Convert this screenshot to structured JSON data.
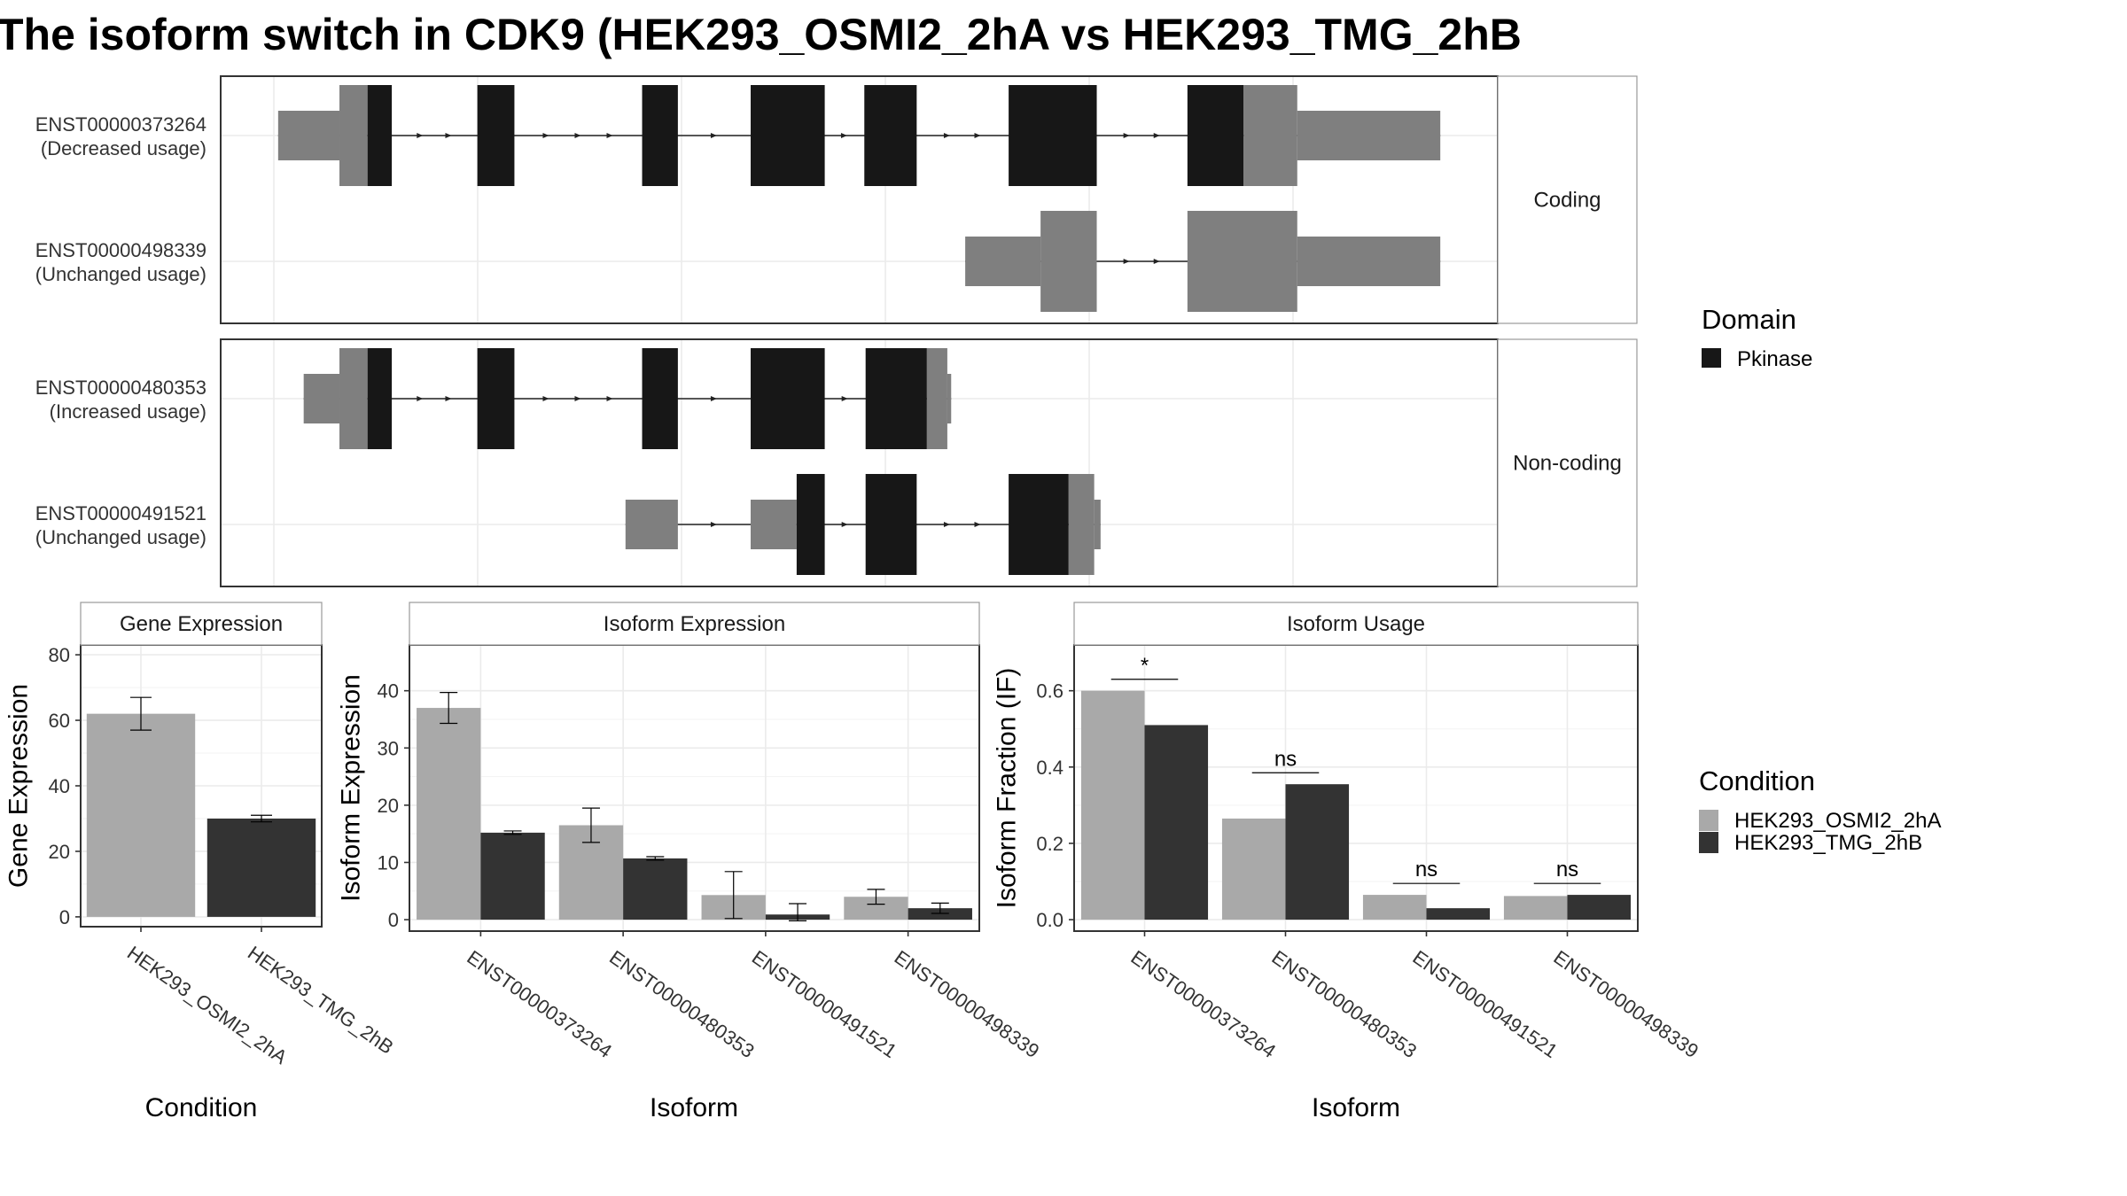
{
  "title": "The isoform switch in CDK9 (HEK293_OSMI2_2hA vs HEK293_TMG_2hB",
  "colors": {
    "domain": "#171717",
    "utr": "#7f7f7f",
    "cond1": "#a9a9a9",
    "cond2": "#333333"
  },
  "structure": {
    "coord_range": [
      0,
      1
    ],
    "facets": [
      {
        "strip": "Coding",
        "transcripts": [
          {
            "id": "ENST00000373264",
            "usage": "(Decreased usage)",
            "exons": [
              {
                "s": 0.045,
                "e": 0.093,
                "type": "utr",
                "h": "thin"
              },
              {
                "s": 0.093,
                "e": 0.115,
                "type": "utr",
                "h": "thick"
              },
              {
                "s": 0.115,
                "e": 0.134,
                "type": "domain",
                "h": "thick"
              },
              {
                "s": 0.201,
                "e": 0.23,
                "type": "domain",
                "h": "thick"
              },
              {
                "s": 0.33,
                "e": 0.358,
                "type": "domain",
                "h": "thick"
              },
              {
                "s": 0.415,
                "e": 0.473,
                "type": "domain",
                "h": "thick"
              },
              {
                "s": 0.504,
                "e": 0.545,
                "type": "domain",
                "h": "thick"
              },
              {
                "s": 0.617,
                "e": 0.686,
                "type": "domain",
                "h": "thick"
              },
              {
                "s": 0.757,
                "e": 0.801,
                "type": "domain",
                "h": "thick"
              },
              {
                "s": 0.801,
                "e": 0.843,
                "type": "utr",
                "h": "thick"
              },
              {
                "s": 0.843,
                "e": 0.955,
                "type": "utr",
                "h": "thin"
              }
            ]
          },
          {
            "id": "ENST00000498339",
            "usage": "(Unchanged usage)",
            "exons": [
              {
                "s": 0.583,
                "e": 0.642,
                "type": "utr",
                "h": "thin"
              },
              {
                "s": 0.642,
                "e": 0.686,
                "type": "utr",
                "h": "thick"
              },
              {
                "s": 0.757,
                "e": 0.843,
                "type": "utr",
                "h": "thick"
              },
              {
                "s": 0.843,
                "e": 0.955,
                "type": "utr",
                "h": "thin"
              }
            ]
          }
        ]
      },
      {
        "strip": "Non-coding",
        "transcripts": [
          {
            "id": "ENST00000480353",
            "usage": "(Increased usage)",
            "exons": [
              {
                "s": 0.065,
                "e": 0.093,
                "type": "utr",
                "h": "thin"
              },
              {
                "s": 0.093,
                "e": 0.115,
                "type": "utr",
                "h": "thick"
              },
              {
                "s": 0.115,
                "e": 0.134,
                "type": "domain",
                "h": "thick"
              },
              {
                "s": 0.201,
                "e": 0.23,
                "type": "domain",
                "h": "thick"
              },
              {
                "s": 0.33,
                "e": 0.358,
                "type": "domain",
                "h": "thick"
              },
              {
                "s": 0.415,
                "e": 0.473,
                "type": "domain",
                "h": "thick"
              },
              {
                "s": 0.505,
                "e": 0.553,
                "type": "domain",
                "h": "thick"
              },
              {
                "s": 0.553,
                "e": 0.569,
                "type": "utr",
                "h": "thick"
              },
              {
                "s": 0.569,
                "e": 0.572,
                "type": "utr",
                "h": "thin"
              }
            ]
          },
          {
            "id": "ENST00000491521",
            "usage": "(Unchanged usage)",
            "exons": [
              {
                "s": 0.317,
                "e": 0.358,
                "type": "utr",
                "h": "thin"
              },
              {
                "s": 0.415,
                "e": 0.451,
                "type": "utr",
                "h": "thin"
              },
              {
                "s": 0.451,
                "e": 0.473,
                "type": "domain",
                "h": "thick"
              },
              {
                "s": 0.505,
                "e": 0.545,
                "type": "domain",
                "h": "thick"
              },
              {
                "s": 0.617,
                "e": 0.664,
                "type": "domain",
                "h": "thick"
              },
              {
                "s": 0.664,
                "e": 0.684,
                "type": "utr",
                "h": "thick"
              },
              {
                "s": 0.684,
                "e": 0.689,
                "type": "utr",
                "h": "thin"
              }
            ]
          }
        ]
      }
    ]
  },
  "legend_domain": {
    "title": "Domain",
    "items": [
      {
        "label": "Pkinase",
        "color": "#171717"
      }
    ]
  },
  "legend_condition": {
    "title": "Condition",
    "items": [
      {
        "label": "HEK293_OSMI2_2hA",
        "color": "#a9a9a9"
      },
      {
        "label": "HEK293_TMG_2hB",
        "color": "#333333"
      }
    ]
  },
  "chart_data": [
    {
      "type": "bar",
      "title": "Gene Expression",
      "xlabel": "Condition",
      "ylabel": "Gene Expression",
      "ylim": [
        -3,
        83
      ],
      "yticks": [
        0,
        20,
        40,
        60,
        80
      ],
      "categories": [
        "HEK293_OSMI2_2hA",
        "HEK293_TMG_2hB"
      ],
      "bars": [
        {
          "category": "HEK293_OSMI2_2hA",
          "value": 62,
          "err": [
            57,
            67
          ],
          "color": "#a9a9a9"
        },
        {
          "category": "HEK293_TMG_2hB",
          "value": 30,
          "err": [
            29,
            31
          ],
          "color": "#333333"
        }
      ]
    },
    {
      "type": "bar",
      "title": "Isoform Expression",
      "xlabel": "Isoform",
      "ylabel": "Isoform Expression",
      "ylim": [
        -2,
        48
      ],
      "yticks": [
        0,
        10,
        20,
        30,
        40
      ],
      "categories": [
        "ENST00000373264",
        "ENST00000480353",
        "ENST00000491521",
        "ENST00000498339"
      ],
      "series": [
        {
          "name": "HEK293_OSMI2_2hA",
          "values": [
            37,
            16.5,
            4.3,
            4
          ],
          "err": [
            [
              34.3,
              39.7
            ],
            [
              13.5,
              19.5
            ],
            [
              0.2,
              8.4
            ],
            [
              2.7,
              5.3
            ]
          ]
        },
        {
          "name": "HEK293_TMG_2hB",
          "values": [
            15.2,
            10.7,
            0.9,
            2
          ],
          "err": [
            [
              14.9,
              15.5
            ],
            [
              10.4,
              11
            ],
            [
              -0.2,
              2.8
            ],
            [
              1.1,
              2.9
            ]
          ]
        }
      ]
    },
    {
      "type": "bar",
      "title": "Isoform Usage",
      "xlabel": "Isoform",
      "ylabel": "Isoform Fraction (IF)",
      "ylim": [
        -0.03,
        0.72
      ],
      "yticks": [
        0.0,
        0.2,
        0.4,
        0.6
      ],
      "tick_labels": [
        "0.0",
        "0.2",
        "0.4",
        "0.6"
      ],
      "categories": [
        "ENST00000373264",
        "ENST00000480353",
        "ENST00000491521",
        "ENST00000498339"
      ],
      "series": [
        {
          "name": "HEK293_OSMI2_2hA",
          "values": [
            0.6,
            0.265,
            0.065,
            0.062
          ]
        },
        {
          "name": "HEK293_TMG_2hB",
          "values": [
            0.51,
            0.355,
            0.03,
            0.065
          ]
        }
      ],
      "significance": [
        {
          "category": "ENST00000373264",
          "label": "*",
          "y": 0.63
        },
        {
          "category": "ENST00000480353",
          "label": "ns",
          "y": 0.385
        },
        {
          "category": "ENST00000491521",
          "label": "ns",
          "y": 0.095
        },
        {
          "category": "ENST00000498339",
          "label": "ns",
          "y": 0.095
        }
      ]
    }
  ]
}
